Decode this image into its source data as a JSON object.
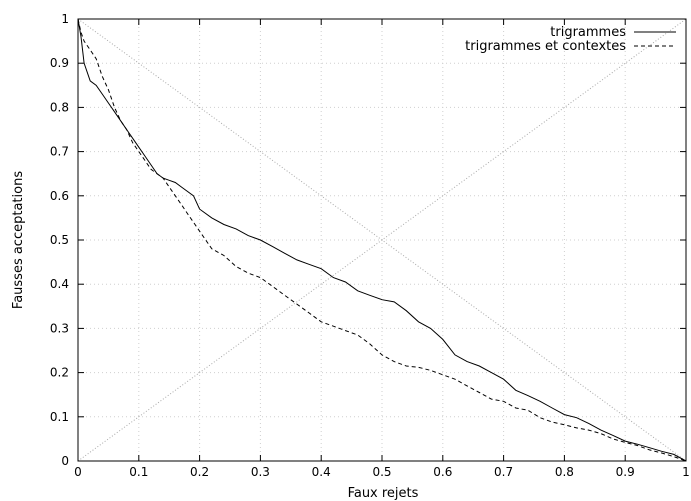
{
  "chart_data": {
    "type": "line",
    "xlabel": "Faux rejets",
    "ylabel": "Fausses acceptations",
    "xlim": [
      0,
      1
    ],
    "ylim": [
      0,
      1
    ],
    "x_ticks": [
      0,
      0.1,
      0.2,
      0.3,
      0.4,
      0.5,
      0.6,
      0.7,
      0.8,
      0.9,
      1
    ],
    "y_ticks": [
      0,
      0.1,
      0.2,
      0.3,
      0.4,
      0.5,
      0.6,
      0.7,
      0.8,
      0.9,
      1
    ],
    "x_tick_labels": [
      "0",
      "0.1",
      "0.2",
      "0.3",
      "0.4",
      "0.5",
      "0.6",
      "0.7",
      "0.8",
      "0.9",
      "1"
    ],
    "y_tick_labels": [
      "0",
      "0.1",
      "0.2",
      "0.3",
      "0.4",
      "0.5",
      "0.6",
      "0.7",
      "0.8",
      "0.9",
      "1"
    ],
    "grid": true,
    "legend_position": "top-right",
    "series": [
      {
        "name": "trigrammes",
        "style": "solid",
        "color": "#000000",
        "x": [
          0,
          0.005,
          0.01,
          0.02,
          0.03,
          0.04,
          0.05,
          0.06,
          0.07,
          0.08,
          0.09,
          0.1,
          0.11,
          0.12,
          0.13,
          0.14,
          0.15,
          0.16,
          0.17,
          0.18,
          0.19,
          0.2,
          0.22,
          0.24,
          0.26,
          0.28,
          0.3,
          0.32,
          0.34,
          0.36,
          0.38,
          0.4,
          0.42,
          0.44,
          0.46,
          0.48,
          0.5,
          0.52,
          0.54,
          0.56,
          0.58,
          0.6,
          0.62,
          0.64,
          0.66,
          0.68,
          0.7,
          0.72,
          0.74,
          0.76,
          0.78,
          0.8,
          0.82,
          0.84,
          0.86,
          0.88,
          0.9,
          0.92,
          0.94,
          0.96,
          0.98,
          1
        ],
        "y": [
          1,
          0.96,
          0.9,
          0.86,
          0.85,
          0.83,
          0.81,
          0.79,
          0.77,
          0.75,
          0.73,
          0.71,
          0.69,
          0.67,
          0.65,
          0.64,
          0.635,
          0.63,
          0.62,
          0.61,
          0.6,
          0.57,
          0.55,
          0.535,
          0.525,
          0.51,
          0.5,
          0.485,
          0.47,
          0.455,
          0.445,
          0.435,
          0.415,
          0.405,
          0.385,
          0.375,
          0.365,
          0.36,
          0.34,
          0.315,
          0.3,
          0.275,
          0.24,
          0.225,
          0.215,
          0.2,
          0.185,
          0.16,
          0.148,
          0.135,
          0.12,
          0.105,
          0.098,
          0.085,
          0.07,
          0.058,
          0.045,
          0.038,
          0.03,
          0.022,
          0.015,
          0
        ]
      },
      {
        "name": "trigrammes et contextes",
        "style": "dashed",
        "color": "#000000",
        "x": [
          0,
          0.005,
          0.01,
          0.02,
          0.03,
          0.04,
          0.05,
          0.06,
          0.07,
          0.08,
          0.09,
          0.1,
          0.11,
          0.12,
          0.13,
          0.14,
          0.15,
          0.16,
          0.17,
          0.18,
          0.19,
          0.2,
          0.22,
          0.24,
          0.26,
          0.28,
          0.3,
          0.32,
          0.34,
          0.36,
          0.38,
          0.4,
          0.42,
          0.44,
          0.46,
          0.48,
          0.5,
          0.52,
          0.54,
          0.56,
          0.58,
          0.6,
          0.62,
          0.64,
          0.66,
          0.68,
          0.7,
          0.72,
          0.74,
          0.76,
          0.78,
          0.8,
          0.82,
          0.84,
          0.86,
          0.88,
          0.9,
          0.92,
          0.94,
          0.96,
          0.98,
          1
        ],
        "y": [
          1,
          0.97,
          0.95,
          0.93,
          0.91,
          0.87,
          0.84,
          0.8,
          0.77,
          0.75,
          0.72,
          0.7,
          0.68,
          0.66,
          0.65,
          0.64,
          0.62,
          0.6,
          0.58,
          0.56,
          0.54,
          0.52,
          0.48,
          0.465,
          0.44,
          0.425,
          0.415,
          0.395,
          0.375,
          0.355,
          0.335,
          0.315,
          0.305,
          0.295,
          0.285,
          0.265,
          0.24,
          0.225,
          0.215,
          0.212,
          0.205,
          0.195,
          0.185,
          0.17,
          0.155,
          0.14,
          0.135,
          0.12,
          0.115,
          0.098,
          0.088,
          0.082,
          0.075,
          0.07,
          0.062,
          0.05,
          0.042,
          0.035,
          0.025,
          0.018,
          0.01,
          0
        ]
      }
    ],
    "reference_lines": [
      {
        "style": "dotted",
        "color": "#aaaaaa",
        "x": [
          0,
          1
        ],
        "y": [
          1,
          0
        ]
      },
      {
        "style": "dotted",
        "color": "#aaaaaa",
        "x": [
          0,
          1
        ],
        "y": [
          0,
          1
        ]
      }
    ]
  }
}
